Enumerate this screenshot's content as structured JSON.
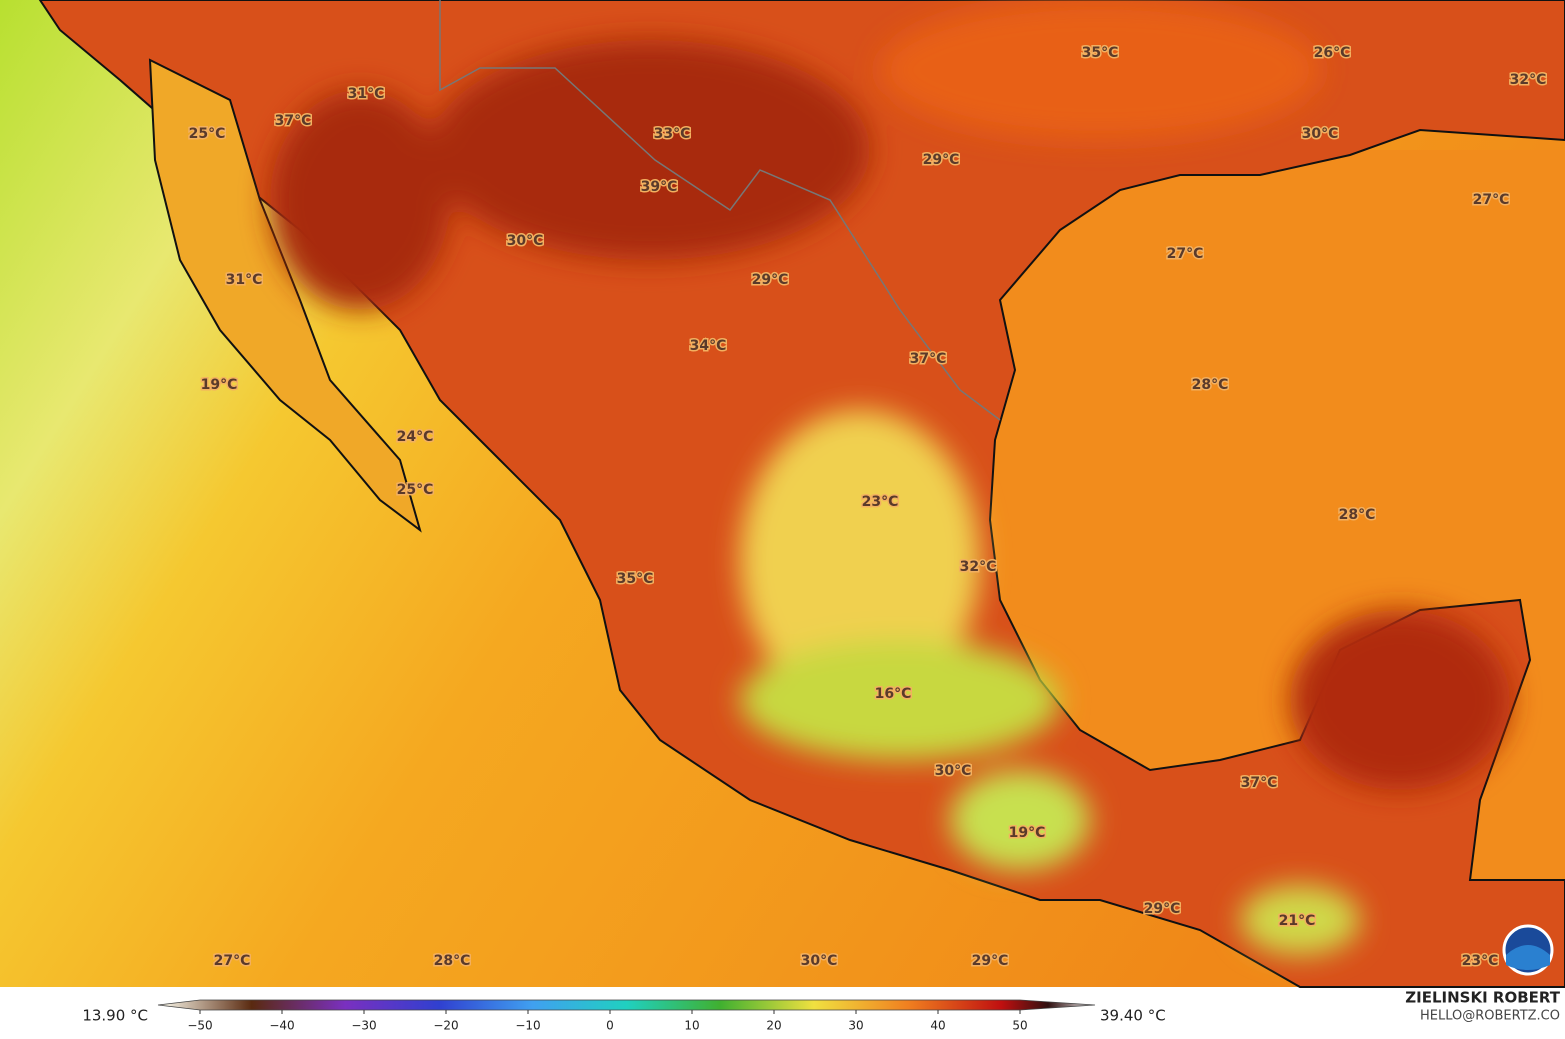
{
  "map": {
    "labels": [
      "35°C",
      "26°C",
      "32°C",
      "31°C",
      "37°C",
      "25°C",
      "33°C",
      "30°C",
      "29°C",
      "39°C",
      "27°C",
      "30°C",
      "27°C",
      "31°C",
      "29°C",
      "34°C",
      "37°C",
      "19°C",
      "28°C",
      "24°C",
      "25°C",
      "23°C",
      "28°C",
      "32°C",
      "35°C",
      "16°C",
      "30°C",
      "37°C",
      "19°C",
      "29°C",
      "21°C",
      "27°C",
      "28°C",
      "30°C",
      "29°C",
      "23°C"
    ],
    "legend": {
      "min": "13.90 °C",
      "max": "39.40 °C",
      "ticks": [
        {
          "value": -50,
          "label": "−50"
        },
        {
          "value": -40,
          "label": "−40"
        },
        {
          "value": -30,
          "label": "−30"
        },
        {
          "value": -20,
          "label": "−20"
        },
        {
          "value": -10,
          "label": "−10"
        },
        0,
        10,
        20,
        30,
        40,
        50
      ]
    },
    "credits": {
      "author": "ZIELINSKI ROBERT",
      "email": "HELLO@ROBERTZ.CO"
    }
  }
}
